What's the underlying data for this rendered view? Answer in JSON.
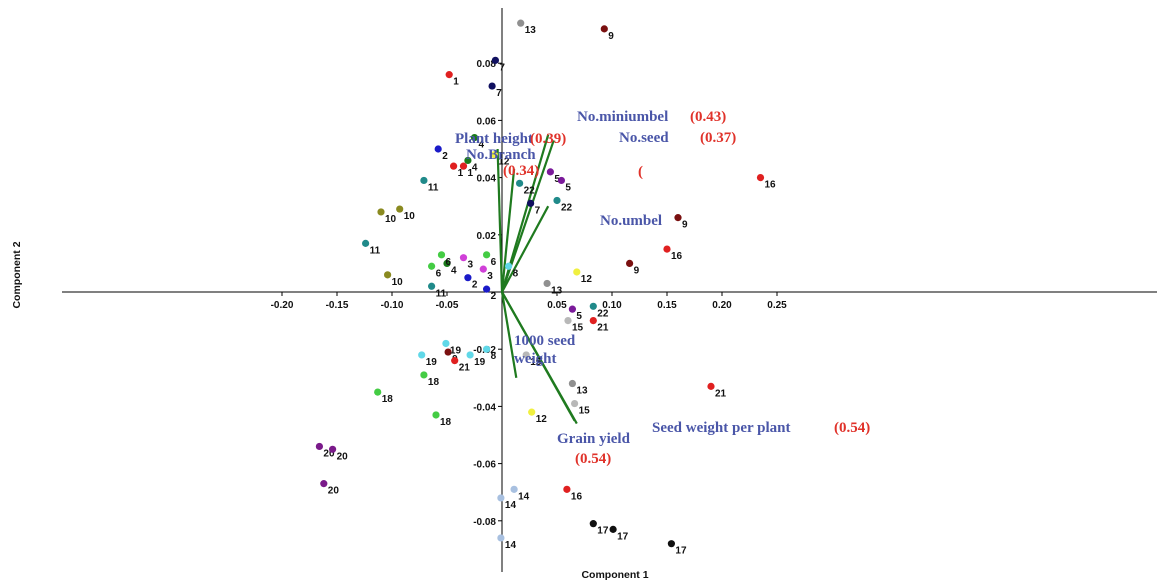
{
  "chart_data": {
    "type": "scatter",
    "xlabel": "Component 1",
    "ylabel": "Component 2",
    "xlim": [
      -0.2,
      0.29
    ],
    "ylim": [
      -0.09,
      0.1
    ],
    "xticks": [
      "-0.20",
      "-0.15",
      "-0.10",
      "-0.05",
      "0.05",
      "0.10",
      "0.15",
      "0.20",
      "0.25"
    ],
    "xtick_values": [
      -0.2,
      -0.15,
      -0.1,
      -0.05,
      0.05,
      0.1,
      0.15,
      0.2,
      0.25
    ],
    "yticks": [
      "-0.08",
      "-0.06",
      "-0.04",
      "-0.02",
      "0.02",
      "0.04",
      "0.06",
      "0.08"
    ],
    "ytick_values": [
      -0.08,
      -0.06,
      -0.04,
      -0.02,
      0.02,
      0.04,
      0.06,
      0.08
    ],
    "vectors": [
      {
        "label": "Plant height",
        "loading": "(0.39)",
        "x": -0.004,
        "y": 0.05
      },
      {
        "label": "No.Branch",
        "loading": "(0.34)",
        "x": 0.011,
        "y": 0.043
      },
      {
        "label": "No.miniumbel",
        "loading": "(0.43)",
        "x": 0.042,
        "y": 0.055
      },
      {
        "label": "No.seed",
        "loading": "(0.37)",
        "x": 0.047,
        "y": 0.053
      },
      {
        "label": "No.umbel",
        "loading": "(",
        "x": 0.042,
        "y": 0.03
      },
      {
        "label": "1000 seed weight",
        "loading": "",
        "x": 0.013,
        "y": -0.03
      },
      {
        "label": "Seed weight per plant",
        "loading": "(0.54)",
        "x": 0.068,
        "y": -0.046
      },
      {
        "label": "Grain yield",
        "loading": "(0.54)",
        "x": 0.066,
        "y": -0.045
      }
    ],
    "points": [
      {
        "label": "1",
        "x": -0.048,
        "y": 0.076,
        "color": "#e02020"
      },
      {
        "label": "1",
        "x": -0.044,
        "y": 0.044,
        "color": "#e02020"
      },
      {
        "label": "1",
        "x": -0.035,
        "y": 0.044,
        "color": "#e02020"
      },
      {
        "label": "2",
        "x": -0.058,
        "y": 0.05,
        "color": "#1a1ac8"
      },
      {
        "label": "2",
        "x": -0.031,
        "y": 0.005,
        "color": "#1a1ac8"
      },
      {
        "label": "2",
        "x": -0.014,
        "y": 0.001,
        "color": "#1a1ac8"
      },
      {
        "label": "3",
        "x": -0.035,
        "y": 0.012,
        "color": "#d040d8"
      },
      {
        "label": "3",
        "x": -0.017,
        "y": 0.008,
        "color": "#d040d8"
      },
      {
        "label": "4",
        "x": -0.025,
        "y": 0.054,
        "color": "#1a7a1a"
      },
      {
        "label": "4",
        "x": -0.031,
        "y": 0.046,
        "color": "#1a7a1a"
      },
      {
        "label": "4",
        "x": -0.05,
        "y": 0.01,
        "color": "#1a7a1a"
      },
      {
        "label": "5",
        "x": 0.044,
        "y": 0.042,
        "color": "#7a1a9a"
      },
      {
        "label": "5",
        "x": 0.054,
        "y": 0.039,
        "color": "#7a1a9a"
      },
      {
        "label": "5",
        "x": 0.064,
        "y": -0.006,
        "color": "#7a1a9a"
      },
      {
        "label": "6",
        "x": -0.055,
        "y": 0.013,
        "color": "#44cc44"
      },
      {
        "label": "6",
        "x": -0.064,
        "y": 0.009,
        "color": "#44cc44"
      },
      {
        "label": "6",
        "x": -0.014,
        "y": 0.013,
        "color": "#44cc44"
      },
      {
        "label": "7",
        "x": -0.006,
        "y": 0.081,
        "color": "#101060"
      },
      {
        "label": "7",
        "x": -0.009,
        "y": 0.072,
        "color": "#101060"
      },
      {
        "label": "7",
        "x": 0.026,
        "y": 0.031,
        "color": "#101060"
      },
      {
        "label": "8",
        "x": 0.006,
        "y": 0.009,
        "color": "#60d8e8"
      },
      {
        "label": "8",
        "x": -0.014,
        "y": -0.02,
        "color": "#60d8e8"
      },
      {
        "label": "9",
        "x": 0.093,
        "y": 0.092,
        "color": "#7a1010"
      },
      {
        "label": "9",
        "x": 0.16,
        "y": 0.026,
        "color": "#7a1010"
      },
      {
        "label": "9",
        "x": 0.116,
        "y": 0.01,
        "color": "#7a1010"
      },
      {
        "label": "9",
        "x": -0.049,
        "y": -0.021,
        "color": "#7a1010"
      },
      {
        "label": "10",
        "x": -0.11,
        "y": 0.028,
        "color": "#8a8a20"
      },
      {
        "label": "10",
        "x": -0.093,
        "y": 0.029,
        "color": "#8a8a20"
      },
      {
        "label": "10",
        "x": -0.104,
        "y": 0.006,
        "color": "#8a8a20"
      },
      {
        "label": "11",
        "x": -0.071,
        "y": 0.039,
        "color": "#208a8a"
      },
      {
        "label": "11",
        "x": -0.124,
        "y": 0.017,
        "color": "#208a8a"
      },
      {
        "label": "11",
        "x": -0.064,
        "y": 0.002,
        "color": "#208a8a"
      },
      {
        "label": "12",
        "x": -0.007,
        "y": 0.048,
        "color": "#f0f040"
      },
      {
        "label": "12",
        "x": 0.068,
        "y": 0.007,
        "color": "#f0f040"
      },
      {
        "label": "12",
        "x": 0.027,
        "y": -0.042,
        "color": "#f0f040"
      },
      {
        "label": "13",
        "x": 0.017,
        "y": 0.094,
        "color": "#909090"
      },
      {
        "label": "13",
        "x": 0.041,
        "y": 0.003,
        "color": "#909090"
      },
      {
        "label": "13",
        "x": 0.064,
        "y": -0.032,
        "color": "#909090"
      },
      {
        "label": "14",
        "x": -0.001,
        "y": -0.072,
        "color": "#a8c0e0"
      },
      {
        "label": "14",
        "x": 0.011,
        "y": -0.069,
        "color": "#a8c0e0"
      },
      {
        "label": "14",
        "x": -0.001,
        "y": -0.086,
        "color": "#a8c0e0"
      },
      {
        "label": "15",
        "x": 0.06,
        "y": -0.01,
        "color": "#b8b8b8"
      },
      {
        "label": "15",
        "x": 0.066,
        "y": -0.039,
        "color": "#b8b8b8"
      },
      {
        "label": "15",
        "x": 0.022,
        "y": -0.022,
        "color": "#b8b8b8"
      },
      {
        "label": "16",
        "x": 0.235,
        "y": 0.04,
        "color": "#e02020"
      },
      {
        "label": "16",
        "x": 0.15,
        "y": 0.015,
        "color": "#e02020"
      },
      {
        "label": "16",
        "x": 0.059,
        "y": -0.069,
        "color": "#e02020"
      },
      {
        "label": "17",
        "x": 0.083,
        "y": -0.081,
        "color": "#101010"
      },
      {
        "label": "17",
        "x": 0.101,
        "y": -0.083,
        "color": "#101010"
      },
      {
        "label": "17",
        "x": 0.154,
        "y": -0.088,
        "color": "#101010"
      },
      {
        "label": "18",
        "x": -0.113,
        "y": -0.035,
        "color": "#44cc44"
      },
      {
        "label": "18",
        "x": -0.071,
        "y": -0.029,
        "color": "#44cc44"
      },
      {
        "label": "18",
        "x": -0.06,
        "y": -0.043,
        "color": "#44cc44"
      },
      {
        "label": "19",
        "x": -0.073,
        "y": -0.022,
        "color": "#60d8e8"
      },
      {
        "label": "19",
        "x": -0.051,
        "y": -0.018,
        "color": "#60d8e8"
      },
      {
        "label": "19",
        "x": -0.029,
        "y": -0.022,
        "color": "#60d8e8"
      },
      {
        "label": "20",
        "x": -0.166,
        "y": -0.054,
        "color": "#7a1a8a"
      },
      {
        "label": "20",
        "x": -0.154,
        "y": -0.055,
        "color": "#7a1a8a"
      },
      {
        "label": "20",
        "x": -0.162,
        "y": -0.067,
        "color": "#7a1a8a"
      },
      {
        "label": "21",
        "x": -0.043,
        "y": -0.024,
        "color": "#e02020"
      },
      {
        "label": "21",
        "x": 0.083,
        "y": -0.01,
        "color": "#e02020"
      },
      {
        "label": "21",
        "x": 0.19,
        "y": -0.033,
        "color": "#e02020"
      },
      {
        "label": "22",
        "x": 0.016,
        "y": 0.038,
        "color": "#208a8a"
      },
      {
        "label": "22",
        "x": 0.05,
        "y": 0.032,
        "color": "#208a8a"
      },
      {
        "label": "22",
        "x": 0.083,
        "y": -0.005,
        "color": "#208a8a"
      }
    ]
  }
}
